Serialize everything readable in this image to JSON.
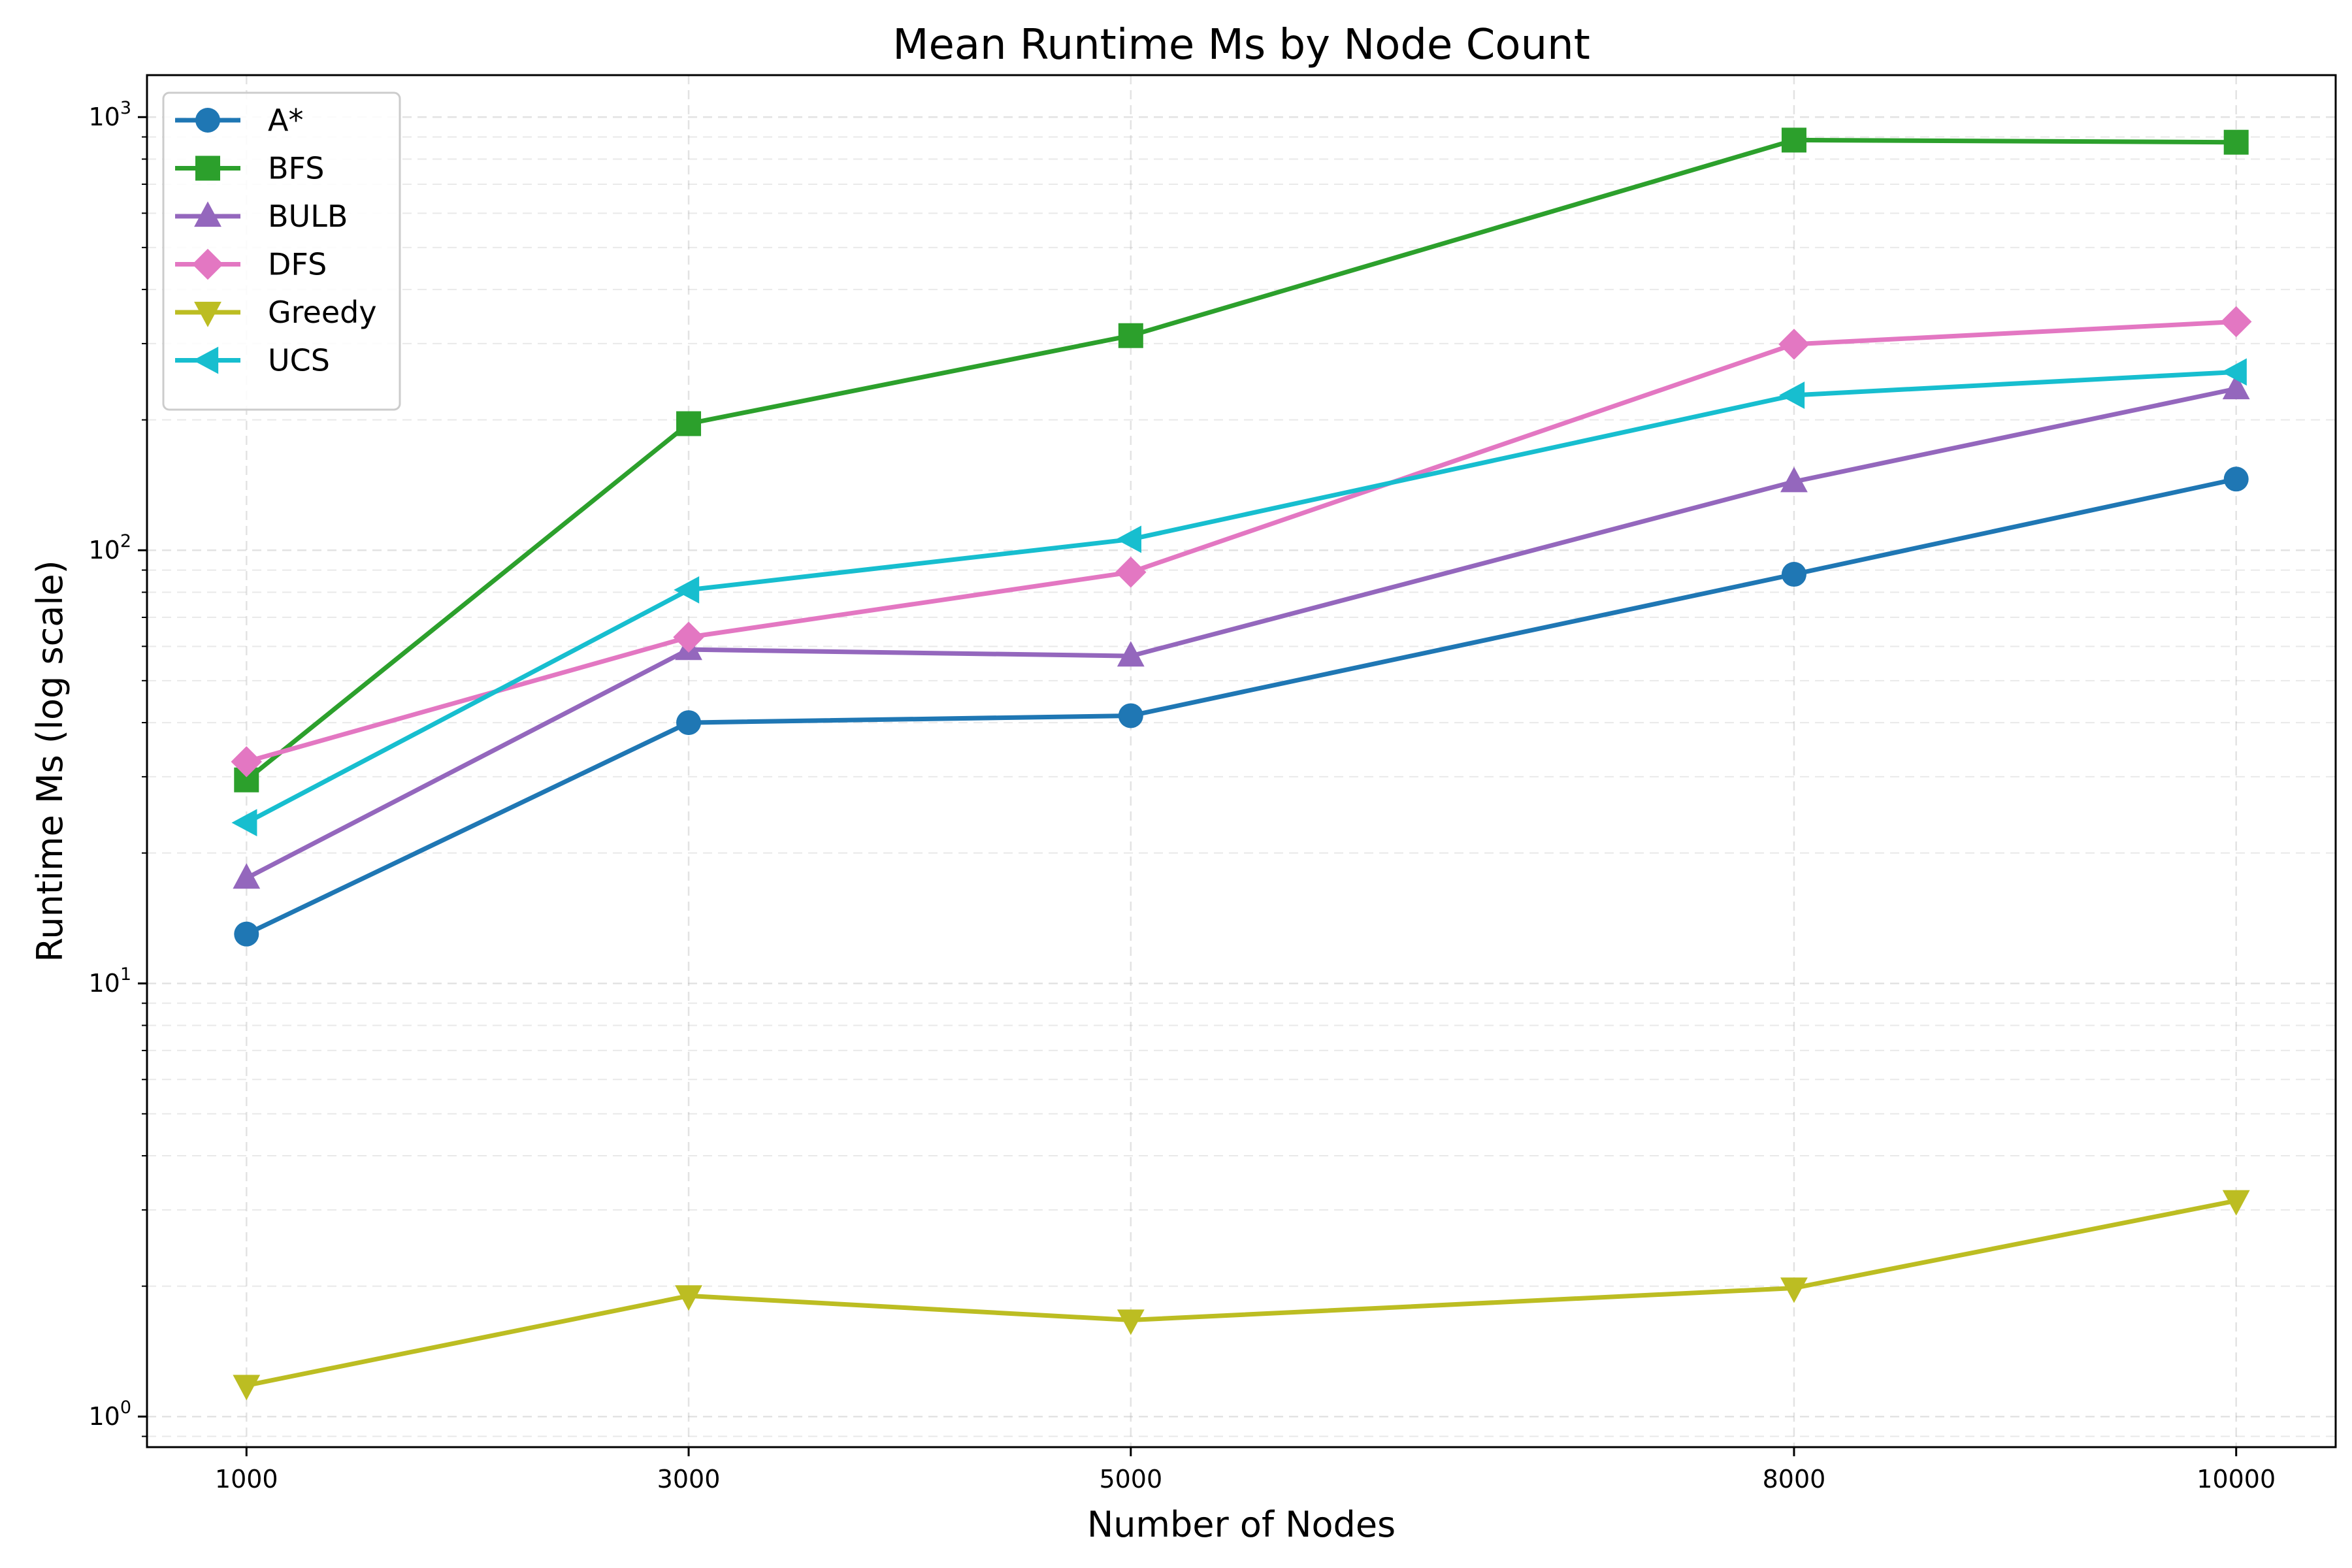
{
  "chart_data": {
    "type": "line",
    "title": "Mean Runtime Ms by Node Count",
    "xlabel": "Number of Nodes",
    "ylabel": "Runtime Ms (log scale)",
    "x": [
      1000,
      3000,
      5000,
      8000,
      10000
    ],
    "x_tick_labels": [
      "1000",
      "3000",
      "5000",
      "8000",
      "10000"
    ],
    "xlim": [
      550,
      10450
    ],
    "yscale": "log",
    "ylim": [
      0.85,
      1250
    ],
    "y_ticks": [
      1,
      10,
      100,
      1000
    ],
    "grid": true,
    "legend_position": "top-left",
    "series": [
      {
        "name": "A*",
        "color": "#1f77b4",
        "marker": "circle",
        "values": [
          13,
          40,
          41.5,
          88,
          146
        ]
      },
      {
        "name": "BFS",
        "color": "#2ca02c",
        "marker": "square",
        "values": [
          29.5,
          196,
          313,
          885,
          875
        ]
      },
      {
        "name": "BULB",
        "color": "#9467bd",
        "marker": "triangle-up",
        "values": [
          17.5,
          59,
          57,
          144,
          236
        ]
      },
      {
        "name": "DFS",
        "color": "#e377c2",
        "marker": "diamond",
        "values": [
          32.5,
          63,
          89,
          299,
          337
        ]
      },
      {
        "name": "Greedy",
        "color": "#bcbd22",
        "marker": "triangle-down",
        "values": [
          1.18,
          1.9,
          1.67,
          1.98,
          3.15
        ]
      },
      {
        "name": "UCS",
        "color": "#17becf",
        "marker": "triangle-left",
        "values": [
          23.5,
          81,
          106,
          228,
          258
        ]
      }
    ]
  }
}
